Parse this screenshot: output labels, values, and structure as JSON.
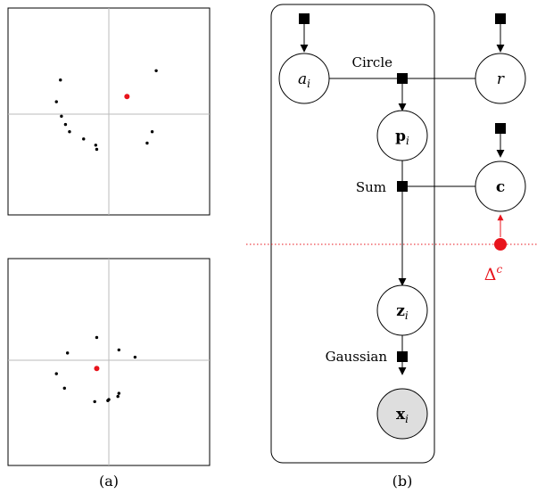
{
  "colors": {
    "accent": "#e8141c",
    "observed_fill": "#dedede",
    "axis": "#bbbbbb"
  },
  "panel_a": {
    "caption": "(a)",
    "plot_top": {
      "points": [
        [
          -0.48,
          -0.33
        ],
        [
          -0.52,
          -0.12
        ],
        [
          -0.47,
          0.02
        ],
        [
          -0.43,
          0.1
        ],
        [
          -0.39,
          0.17
        ],
        [
          -0.25,
          0.24
        ],
        [
          -0.13,
          0.3
        ],
        [
          -0.12,
          0.34
        ],
        [
          0.38,
          0.28
        ],
        [
          0.43,
          0.17
        ],
        [
          0.47,
          -0.42
        ]
      ],
      "center": [
        0.18,
        -0.17
      ]
    },
    "plot_bottom": {
      "points": [
        [
          -0.12,
          -0.22
        ],
        [
          -0.41,
          -0.07
        ],
        [
          0.1,
          -0.1
        ],
        [
          0.26,
          -0.03
        ],
        [
          -0.52,
          0.13
        ],
        [
          -0.44,
          0.27
        ],
        [
          -0.14,
          0.4
        ],
        [
          -0.01,
          0.39
        ],
        [
          0.09,
          0.35
        ],
        [
          0.1,
          0.32
        ],
        [
          0.0,
          0.38
        ]
      ],
      "center": [
        -0.12,
        0.08
      ]
    }
  },
  "panel_b": {
    "caption": "(b)",
    "nodes": {
      "a": {
        "label": "a",
        "sub": "i"
      },
      "r": {
        "label": "r"
      },
      "p": {
        "label": "p",
        "sub": "i"
      },
      "c": {
        "label": "c"
      },
      "z": {
        "label": "z",
        "sub": "i"
      },
      "x": {
        "label": "x",
        "sub": "i"
      }
    },
    "factors": {
      "circle": "Circle",
      "sum": "Sum",
      "gaussian": "Gaussian"
    },
    "intervention": {
      "label": "Δ",
      "sup": "c"
    }
  }
}
